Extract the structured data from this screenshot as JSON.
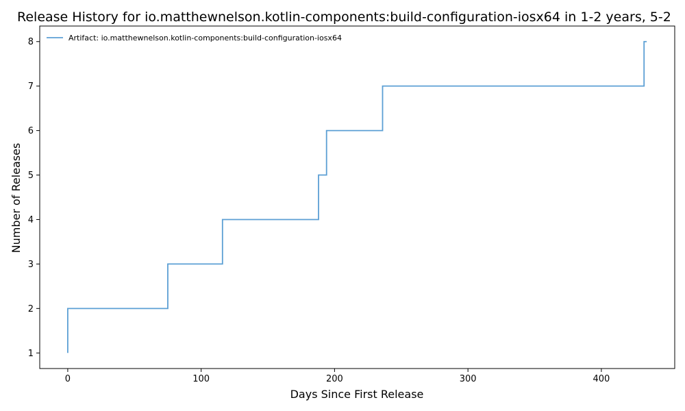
{
  "chart_data": {
    "type": "line",
    "drawstyle": "steps-post",
    "title": "Release History for io.matthewnelson.kotlin-components:build-configuration-iosx64 in 1-2 years, 5-2",
    "xlabel": "Days Since First Release",
    "ylabel": "Number of Releases",
    "xlim": [
      -21,
      455
    ],
    "ylim": [
      0.65,
      8.35
    ],
    "xticks": [
      0,
      100,
      200,
      300,
      400
    ],
    "xtick_labels": [
      "0",
      "100",
      "200",
      "300",
      "400"
    ],
    "yticks": [
      1,
      2,
      3,
      4,
      5,
      6,
      7,
      8
    ],
    "ytick_labels": [
      "1",
      "2",
      "3",
      "4",
      "5",
      "6",
      "7",
      "8"
    ],
    "grid": false,
    "legend": {
      "location": "top-left"
    },
    "series": [
      {
        "name": "Artifact: io.matthewnelson.kotlin-components:build-configuration-iosx64",
        "color": "#5b9fd4",
        "x": [
          0,
          0,
          75,
          116,
          188,
          194,
          236,
          432,
          434
        ],
        "y": [
          1,
          2,
          3,
          4,
          5,
          6,
          7,
          8,
          8
        ]
      }
    ]
  }
}
